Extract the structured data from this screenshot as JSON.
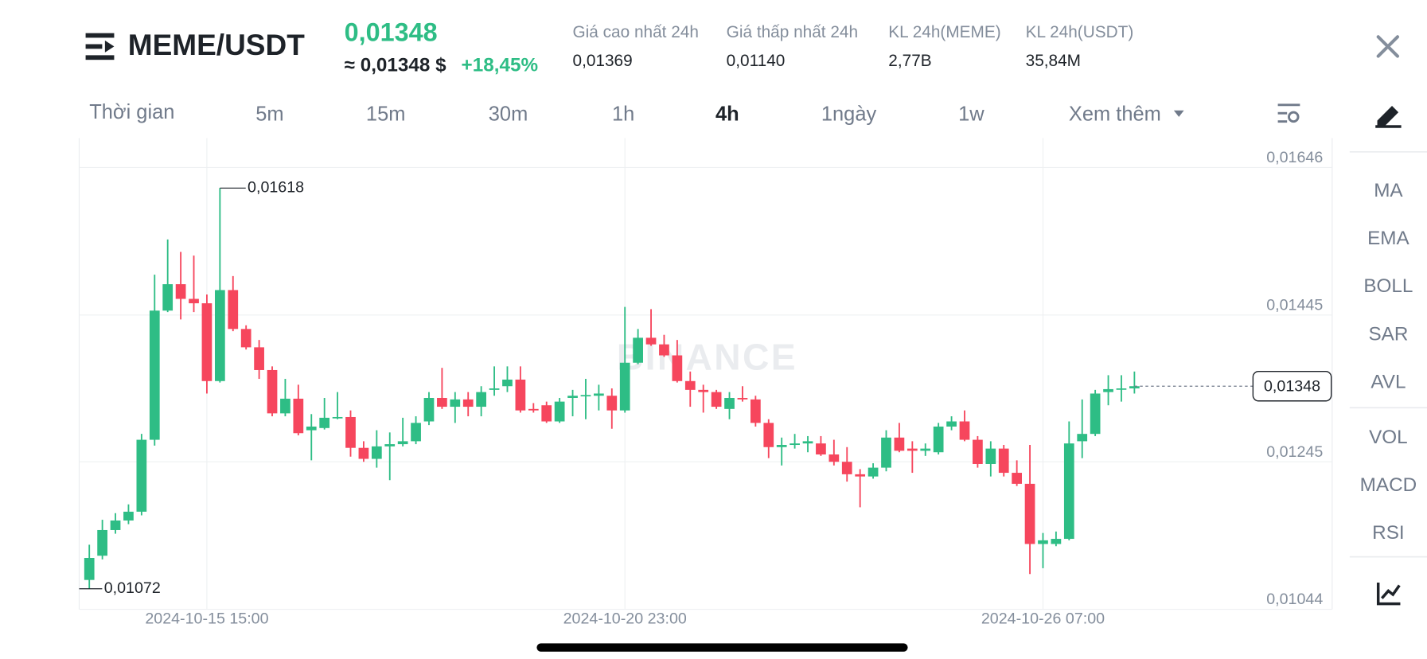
{
  "header": {
    "pair": "MEME/USDT",
    "price": "0,01348",
    "approx": "≈ 0,01348 $",
    "change": "+18,45%"
  },
  "stats": [
    {
      "label": "Giá cao nhất 24h",
      "value": "0,01369"
    },
    {
      "label": "Giá thấp nhất 24h",
      "value": "0,01140"
    },
    {
      "label": "KL 24h(MEME)",
      "value": "2,77B"
    },
    {
      "label": "KL 24h(USDT)",
      "value": "35,84M"
    }
  ],
  "timeframes": {
    "label": "Thời gian",
    "options": [
      "5m",
      "15m",
      "30m",
      "1h",
      "4h",
      "1ngày",
      "1w"
    ],
    "selected": "4h",
    "more": "Xem thêm"
  },
  "indicators": [
    "MA",
    "EMA",
    "BOLL",
    "SAR",
    "AVL",
    "VOL",
    "MACD",
    "RSI"
  ],
  "watermark": "BINANCE",
  "chart_data": {
    "type": "candlestick",
    "up_color": "#2ebd85",
    "down_color": "#f6465d",
    "grid": true,
    "ylim": [
      0.01044,
      0.01646
    ],
    "yticks": [
      {
        "value": 0.01646,
        "label": "0,01646"
      },
      {
        "value": 0.01445,
        "label": "0,01445"
      },
      {
        "value": 0.01245,
        "label": "0,01245"
      },
      {
        "value": 0.01044,
        "label": "0,01044"
      }
    ],
    "categories": [
      null,
      null,
      null,
      null,
      null,
      null,
      null,
      null,
      null,
      "2024-10-15 15:00",
      null,
      null,
      null,
      null,
      null,
      null,
      null,
      null,
      null,
      null,
      null,
      null,
      null,
      null,
      null,
      null,
      null,
      null,
      null,
      null,
      null,
      null,
      null,
      null,
      null,
      null,
      null,
      null,
      null,
      null,
      null,
      "2024-10-20 23:00",
      null,
      null,
      null,
      null,
      null,
      null,
      null,
      null,
      null,
      null,
      null,
      null,
      null,
      null,
      null,
      null,
      null,
      null,
      null,
      null,
      null,
      null,
      null,
      null,
      null,
      null,
      null,
      null,
      null,
      null,
      null,
      "2024-10-26 07:00",
      null,
      null,
      null,
      null,
      null,
      null,
      null
    ],
    "open": [
      0.01084,
      0.01117,
      0.01152,
      0.01165,
      0.01177,
      0.01275,
      0.01451,
      0.01487,
      0.01467,
      0.01461,
      0.01355,
      0.01479,
      0.01426,
      0.01401,
      0.0137,
      0.01311,
      0.01331,
      0.01288,
      0.01291,
      0.01305,
      0.01306,
      0.01264,
      0.01249,
      0.01266,
      0.01269,
      0.01273,
      0.013,
      0.01332,
      0.0132,
      0.0133,
      0.0132,
      0.01343,
      0.01348,
      0.01357,
      0.01317,
      0.01322,
      0.013,
      0.01332,
      0.01335,
      0.01335,
      0.01335,
      0.01315,
      0.0138,
      0.01414,
      0.01405,
      0.0139,
      0.01355,
      0.01343,
      0.0134,
      0.01317,
      0.01332,
      0.0133,
      0.01298,
      0.01265,
      0.01268,
      0.0127,
      0.0127,
      0.01255,
      0.01245,
      0.01228,
      0.01225,
      0.01237,
      0.01278,
      0.01263,
      0.0126,
      0.01258,
      0.01293,
      0.013,
      0.01275,
      0.01242,
      0.01263,
      0.0123,
      0.01215,
      0.01133,
      0.01133,
      0.0114,
      0.01273,
      0.01283,
      0.0134,
      0.01344,
      0.01345
    ],
    "high": [
      0.01132,
      0.01166,
      0.01175,
      0.01187,
      0.01283,
      0.015,
      0.01548,
      0.01531,
      0.01526,
      0.01473,
      0.01618,
      0.01498,
      0.01431,
      0.01411,
      0.01375,
      0.01358,
      0.0135,
      0.0131,
      0.01332,
      0.0134,
      0.01315,
      0.01273,
      0.01288,
      0.01285,
      0.01305,
      0.01307,
      0.0134,
      0.01373,
      0.0134,
      0.0134,
      0.01348,
      0.01375,
      0.01375,
      0.01375,
      0.01325,
      0.01327,
      0.01332,
      0.01343,
      0.01358,
      0.0135,
      0.01345,
      0.01456,
      0.01426,
      0.01453,
      0.01418,
      0.01411,
      0.01368,
      0.0135,
      0.01343,
      0.0134,
      0.01348,
      0.01335,
      0.01303,
      0.01278,
      0.01283,
      0.0128,
      0.0128,
      0.01275,
      0.01265,
      0.01235,
      0.01243,
      0.01288,
      0.01298,
      0.01273,
      0.0127,
      0.01298,
      0.01307,
      0.01315,
      0.0128,
      0.01273,
      0.01268,
      0.01247,
      0.01268,
      0.01148,
      0.0115,
      0.013,
      0.0133,
      0.01343,
      0.01363,
      0.01363,
      0.01368
    ],
    "low": [
      0.01072,
      0.01112,
      0.01147,
      0.0116,
      0.01172,
      0.01267,
      0.01449,
      0.01439,
      0.01449,
      0.01338,
      0.01353,
      0.01423,
      0.01398,
      0.01358,
      0.01307,
      0.01307,
      0.01281,
      0.01247,
      0.01289,
      0.01303,
      0.01252,
      0.01245,
      0.01237,
      0.0122,
      0.01266,
      0.01269,
      0.01295,
      0.01317,
      0.01298,
      0.01307,
      0.01307,
      0.01335,
      0.0134,
      0.01312,
      0.01312,
      0.01298,
      0.01298,
      0.01307,
      0.01303,
      0.01315,
      0.0129,
      0.01312,
      0.01378,
      0.01403,
      0.01388,
      0.01353,
      0.0132,
      0.01312,
      0.01317,
      0.01303,
      0.01327,
      0.01293,
      0.0125,
      0.0124,
      0.01263,
      0.01258,
      0.01253,
      0.0124,
      0.01218,
      0.01183,
      0.01222,
      0.01232,
      0.01258,
      0.0123,
      0.01253,
      0.01255,
      0.01288,
      0.01273,
      0.01237,
      0.01225,
      0.01225,
      0.01212,
      0.01092,
      0.011,
      0.0113,
      0.01138,
      0.0125,
      0.0128,
      0.01322,
      0.01327,
      0.01338
    ],
    "close": [
      0.01114,
      0.01152,
      0.01165,
      0.01177,
      0.01275,
      0.01451,
      0.01487,
      0.01467,
      0.01461,
      0.01355,
      0.01479,
      0.01426,
      0.01401,
      0.0137,
      0.01311,
      0.01331,
      0.01284,
      0.01293,
      0.01305,
      0.01306,
      0.01264,
      0.01249,
      0.01266,
      0.01269,
      0.01273,
      0.01298,
      0.01332,
      0.0132,
      0.0133,
      0.0132,
      0.0134,
      0.01345,
      0.01357,
      0.01315,
      0.01315,
      0.013,
      0.01327,
      0.01335,
      0.01336,
      0.01338,
      0.01315,
      0.0138,
      0.01414,
      0.01405,
      0.0139,
      0.01355,
      0.01343,
      0.0134,
      0.0132,
      0.01332,
      0.0133,
      0.01298,
      0.01265,
      0.01268,
      0.0127,
      0.01273,
      0.01255,
      0.01245,
      0.01228,
      0.01225,
      0.01237,
      0.01278,
      0.0126,
      0.0126,
      0.01263,
      0.01293,
      0.013,
      0.01275,
      0.01242,
      0.01263,
      0.0123,
      0.01215,
      0.01133,
      0.01138,
      0.0114,
      0.0127,
      0.01283,
      0.01338,
      0.01344,
      0.01345,
      0.01348
    ],
    "annotations": [
      {
        "label": "0,01618",
        "value": 0.01618,
        "kind": "high"
      },
      {
        "label": "0,01072",
        "value": 0.01072,
        "kind": "low"
      }
    ],
    "last_price": {
      "label": "0,01348",
      "value": 0.01348
    }
  }
}
